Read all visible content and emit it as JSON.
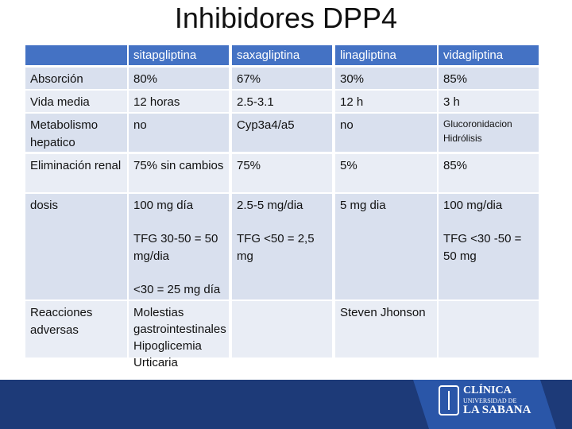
{
  "header": {
    "title": "Inhibidores DPP4"
  },
  "table": {
    "columns": [
      "sitapgliptina",
      "saxagliptina",
      "linagliptina",
      "vidagliptina"
    ],
    "rows": [
      {
        "label": "Absorción",
        "cells": [
          [
            "80%"
          ],
          [
            "67%"
          ],
          [
            "30%"
          ],
          [
            "85%"
          ]
        ]
      },
      {
        "label": "Vida media",
        "cells": [
          [
            "12 horas"
          ],
          [
            "2.5-3.1"
          ],
          [
            "12 h"
          ],
          [
            "3 h"
          ]
        ]
      },
      {
        "label": "Metabolismo hepatico",
        "cells": [
          [
            "no"
          ],
          [
            "Cyp3a4/a5"
          ],
          [
            "no"
          ],
          [
            "Glucoronidacion Hidrólisis"
          ]
        ]
      },
      {
        "label": "Eliminación renal",
        "cells": [
          [
            "75% sin cambios"
          ],
          [
            "75%"
          ],
          [
            "5%"
          ],
          [
            "85%"
          ]
        ]
      },
      {
        "label": "dosis",
        "cells": [
          [
            "100 mg día",
            "TFG 30-50 = 50 mg/dia",
            "<30 = 25 mg día"
          ],
          [
            "2.5-5 mg/dia",
            "TFG <50 = 2,5 mg"
          ],
          [
            "5 mg dia"
          ],
          [
            "100 mg/dia",
            "TFG <30 -50 = 50 mg"
          ]
        ]
      },
      {
        "label": "Reacciones adversas",
        "cells": [
          [
            "Molestias gastrointestinales",
            "Hipoglicemia",
            "Urticaria"
          ],
          null,
          [
            "Steven Jhonson"
          ],
          null
        ]
      }
    ]
  },
  "footer": {
    "logo": [
      "CLÍNICA",
      "UNIVERSIDAD DE",
      "LA SABANA"
    ]
  }
}
